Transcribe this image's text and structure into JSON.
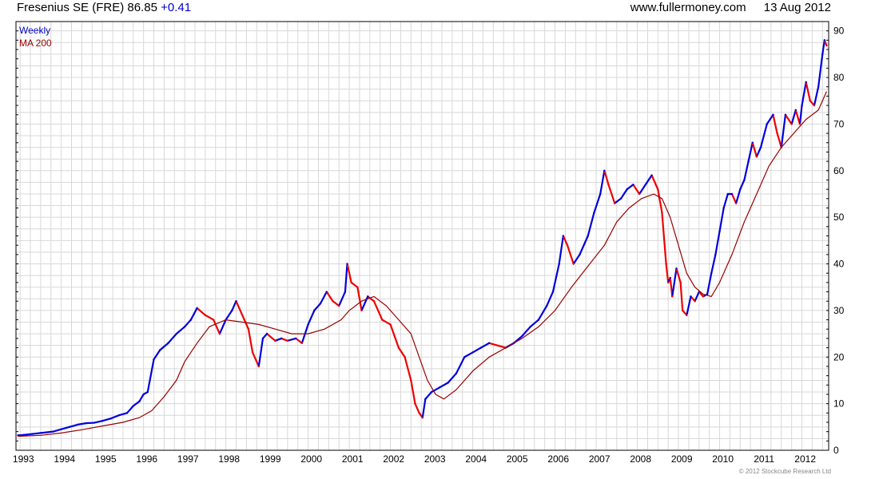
{
  "header": {
    "symbol": "Fresenius SE (FRE)",
    "price": "86.85",
    "change": "+0.41",
    "site": "www.fullermoney.com",
    "date": "13 Aug 2012"
  },
  "footer": {
    "copyright": "© 2012 Stockcube Research Ltd"
  },
  "colors": {
    "up": "#0000dd",
    "down": "#ee0000",
    "ma": "#990000",
    "grid": "#d8d8d8",
    "weekly_text": "#0000cc",
    "ma_text": "#990000"
  },
  "chart_data": {
    "type": "line",
    "legend": [
      {
        "name": "Weekly",
        "color": "#0000cc"
      },
      {
        "name": "MA 200",
        "color": "#990000"
      }
    ],
    "x_ticks": [
      "1993",
      "1994",
      "1995",
      "1996",
      "1997",
      "1998",
      "1999",
      "2000",
      "2001",
      "2002",
      "2003",
      "2004",
      "2005",
      "2006",
      "2007",
      "2008",
      "2009",
      "2010",
      "2011",
      "2012"
    ],
    "y_ticks": [
      0,
      10,
      20,
      30,
      40,
      50,
      60,
      70,
      80,
      90
    ],
    "xlim": [
      1992.9,
      2012.65
    ],
    "ylim": [
      0,
      92
    ],
    "price_series": {
      "name": "Weekly",
      "x": [
        1992.95,
        1993.1,
        1993.3,
        1993.5,
        1993.8,
        1994.0,
        1994.2,
        1994.4,
        1994.6,
        1994.8,
        1995.0,
        1995.2,
        1995.4,
        1995.6,
        1995.75,
        1995.9,
        1996.0,
        1996.1,
        1996.25,
        1996.4,
        1996.6,
        1996.8,
        1997.0,
        1997.15,
        1997.3,
        1997.5,
        1997.7,
        1997.85,
        1998.0,
        1998.15,
        1998.25,
        1998.45,
        1998.55,
        1998.65,
        1998.8,
        1998.9,
        1999.0,
        1999.2,
        1999.35,
        1999.5,
        1999.7,
        1999.85,
        2000.0,
        2000.15,
        2000.3,
        2000.45,
        2000.6,
        2000.75,
        2000.9,
        2000.95,
        2001.05,
        2001.2,
        2001.3,
        2001.45,
        2001.6,
        2001.8,
        2002.0,
        2002.2,
        2002.35,
        2002.5,
        2002.6,
        2002.7,
        2002.78,
        2002.85,
        2003.0,
        2003.2,
        2003.4,
        2003.6,
        2003.8,
        2004.0,
        2004.2,
        2004.4,
        2004.6,
        2004.8,
        2005.0,
        2005.2,
        2005.4,
        2005.6,
        2005.8,
        2005.95,
        2006.1,
        2006.2,
        2006.3,
        2006.45,
        2006.6,
        2006.8,
        2006.95,
        2007.1,
        2007.2,
        2007.3,
        2007.45,
        2007.6,
        2007.75,
        2007.9,
        2008.05,
        2008.2,
        2008.35,
        2008.5,
        2008.6,
        2008.7,
        2008.75,
        2008.8,
        2008.85,
        2008.95,
        2009.05,
        2009.1,
        2009.2,
        2009.3,
        2009.4,
        2009.5,
        2009.6,
        2009.7,
        2009.8,
        2009.9,
        2010.0,
        2010.1,
        2010.2,
        2010.3,
        2010.4,
        2010.5,
        2010.6,
        2010.7,
        2010.8,
        2010.9,
        2011.0,
        2011.15,
        2011.3,
        2011.4,
        2011.5,
        2011.6,
        2011.75,
        2011.85,
        2011.95,
        2012.0,
        2012.1,
        2012.2,
        2012.3,
        2012.4,
        2012.5,
        2012.55,
        2012.6
      ],
      "y": [
        3.2,
        3.3,
        3.5,
        3.7,
        4.0,
        4.5,
        5.0,
        5.5,
        5.8,
        5.9,
        6.3,
        6.8,
        7.5,
        8.0,
        9.5,
        10.5,
        12.0,
        12.5,
        19.5,
        21.5,
        23.0,
        25.0,
        26.5,
        28.0,
        30.5,
        29.0,
        28.0,
        25.0,
        28.0,
        30.0,
        32.0,
        28.0,
        26.0,
        21.0,
        18.0,
        24.0,
        25.0,
        23.5,
        24.0,
        23.5,
        24.0,
        23.0,
        27.0,
        30.0,
        31.5,
        34.0,
        32.0,
        31.0,
        34.0,
        40.0,
        36.0,
        35.0,
        30.0,
        33.0,
        32.0,
        28.0,
        27.0,
        22.0,
        20.0,
        15.0,
        10.0,
        8.0,
        7.0,
        11.0,
        12.5,
        13.5,
        14.5,
        16.5,
        20.0,
        21.0,
        22.0,
        23.0,
        22.5,
        22.0,
        23.0,
        24.5,
        26.5,
        28.0,
        31.0,
        34.0,
        40.0,
        46.0,
        44.0,
        40.0,
        42.0,
        46.0,
        51.0,
        55.0,
        60.0,
        57.0,
        53.0,
        54.0,
        56.0,
        57.0,
        55.0,
        57.0,
        59.0,
        56.0,
        51.0,
        40.0,
        36.0,
        37.0,
        33.0,
        39.0,
        36.0,
        30.0,
        29.0,
        33.0,
        32.0,
        34.0,
        33.0,
        33.5,
        38.0,
        42.0,
        47.0,
        52.0,
        55.0,
        55.0,
        53.0,
        56.0,
        58.0,
        62.0,
        66.0,
        63.0,
        65.0,
        70.0,
        72.0,
        68.0,
        65.0,
        72.0,
        70.0,
        73.0,
        70.0,
        74.0,
        79.0,
        75.0,
        74.0,
        78.0,
        85.0,
        88.0,
        86.85
      ]
    },
    "ma_series": {
      "name": "MA 200",
      "x": [
        1992.95,
        1993.5,
        1994.0,
        1994.5,
        1995.0,
        1995.5,
        1995.9,
        1996.2,
        1996.5,
        1996.8,
        1997.0,
        1997.3,
        1997.6,
        1998.0,
        1998.4,
        1998.8,
        1999.2,
        1999.6,
        2000.0,
        2000.4,
        2000.8,
        2001.0,
        2001.3,
        2001.6,
        2001.9,
        2002.2,
        2002.5,
        2002.7,
        2002.9,
        2003.1,
        2003.3,
        2003.6,
        2004.0,
        2004.4,
        2004.8,
        2005.2,
        2005.6,
        2006.0,
        2006.4,
        2006.8,
        2007.2,
        2007.5,
        2007.8,
        2008.1,
        2008.4,
        2008.6,
        2008.8,
        2009.0,
        2009.2,
        2009.4,
        2009.6,
        2009.8,
        2010.0,
        2010.3,
        2010.6,
        2010.9,
        2011.2,
        2011.5,
        2011.8,
        2012.1,
        2012.4,
        2012.6
      ],
      "y": [
        3.0,
        3.2,
        3.7,
        4.4,
        5.2,
        6.0,
        7.0,
        8.5,
        11.5,
        15.0,
        19.0,
        23.0,
        26.5,
        28.0,
        27.5,
        27.0,
        26.0,
        25.0,
        25.0,
        26.0,
        28.0,
        30.0,
        32.0,
        33.0,
        31.0,
        28.0,
        25.0,
        20.0,
        15.0,
        12.0,
        11.0,
        13.0,
        17.0,
        20.0,
        22.0,
        24.0,
        26.5,
        30.0,
        35.0,
        39.5,
        44.0,
        49.0,
        52.0,
        54.0,
        55.0,
        54.0,
        50.0,
        44.0,
        38.0,
        35.0,
        33.5,
        33.0,
        36.0,
        42.0,
        49.0,
        55.0,
        61.0,
        65.0,
        68.0,
        71.0,
        73.0,
        77.0
      ]
    },
    "annotations": {
      "last_price": 86.85
    },
    "grid": true
  }
}
